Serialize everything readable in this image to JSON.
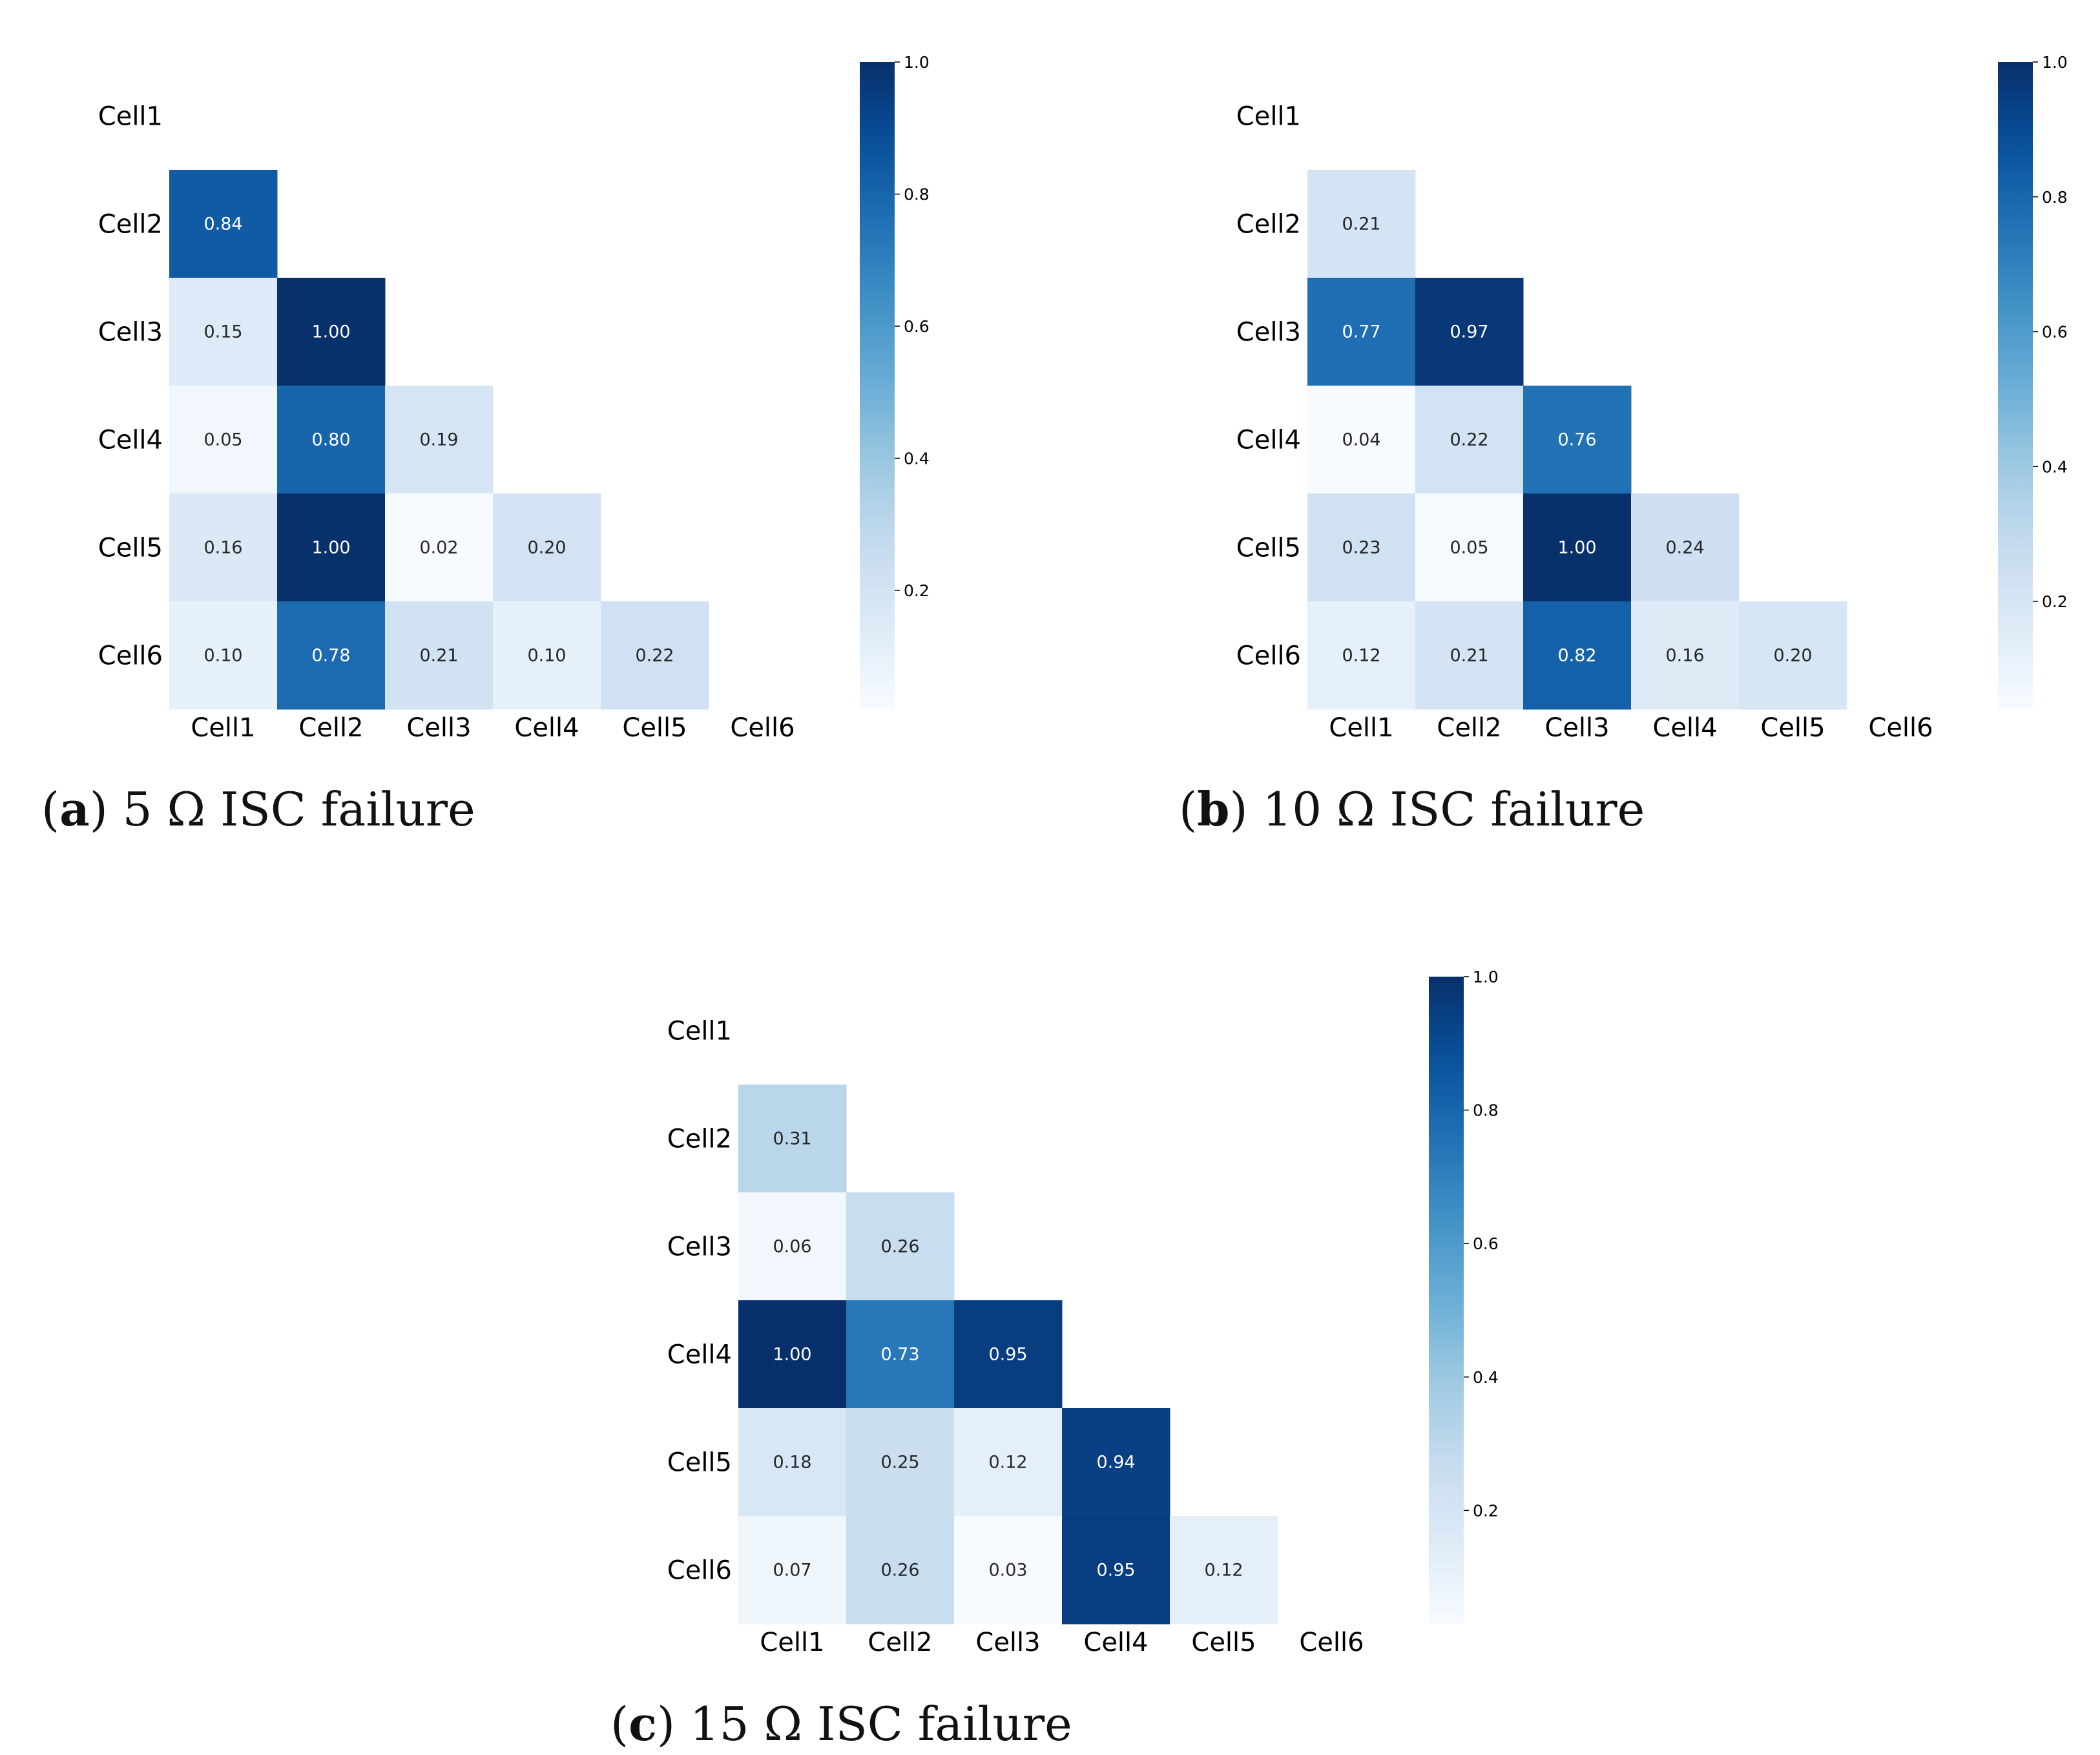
{
  "chart_data": [
    {
      "type": "heatmap",
      "panel_letter": "a",
      "caption": "5 Ω ISC failure",
      "row_labels": [
        "Cell1",
        "Cell2",
        "Cell3",
        "Cell4",
        "Cell5",
        "Cell6"
      ],
      "col_labels": [
        "Cell1",
        "Cell2",
        "Cell3",
        "Cell4",
        "Cell5",
        "Cell6"
      ],
      "mask": "upper-triangle-and-diagonal",
      "values": [
        [
          null,
          null,
          null,
          null,
          null,
          null
        ],
        [
          0.84,
          null,
          null,
          null,
          null,
          null
        ],
        [
          0.15,
          1.0,
          null,
          null,
          null,
          null
        ],
        [
          0.05,
          0.8,
          0.19,
          null,
          null,
          null
        ],
        [
          0.16,
          1.0,
          0.02,
          0.2,
          null,
          null
        ],
        [
          0.1,
          0.78,
          0.21,
          0.1,
          0.22,
          null
        ]
      ],
      "colormap": "Blues",
      "colorbar": {
        "range": [
          0.02,
          1.0
        ],
        "ticks": [
          "0.2",
          "0.4",
          "0.6",
          "0.8",
          "1.0"
        ]
      }
    },
    {
      "type": "heatmap",
      "panel_letter": "b",
      "caption": "10 Ω ISC failure",
      "row_labels": [
        "Cell1",
        "Cell2",
        "Cell3",
        "Cell4",
        "Cell5",
        "Cell6"
      ],
      "col_labels": [
        "Cell1",
        "Cell2",
        "Cell3",
        "Cell4",
        "Cell5",
        "Cell6"
      ],
      "mask": "upper-triangle-and-diagonal",
      "values": [
        [
          null,
          null,
          null,
          null,
          null,
          null
        ],
        [
          0.21,
          null,
          null,
          null,
          null,
          null
        ],
        [
          0.77,
          0.97,
          null,
          null,
          null,
          null
        ],
        [
          0.04,
          0.22,
          0.76,
          null,
          null,
          null
        ],
        [
          0.23,
          0.05,
          1.0,
          0.24,
          null,
          null
        ],
        [
          0.12,
          0.21,
          0.82,
          0.16,
          0.2,
          null
        ]
      ],
      "colormap": "Blues",
      "colorbar": {
        "range": [
          0.04,
          1.0
        ],
        "ticks": [
          "0.2",
          "0.4",
          "0.6",
          "0.8",
          "1.0"
        ]
      }
    },
    {
      "type": "heatmap",
      "panel_letter": "c",
      "caption": "15 Ω ISC failure",
      "row_labels": [
        "Cell1",
        "Cell2",
        "Cell3",
        "Cell4",
        "Cell5",
        "Cell6"
      ],
      "col_labels": [
        "Cell1",
        "Cell2",
        "Cell3",
        "Cell4",
        "Cell5",
        "Cell6"
      ],
      "mask": "upper-triangle-and-diagonal",
      "values": [
        [
          null,
          null,
          null,
          null,
          null,
          null
        ],
        [
          0.31,
          null,
          null,
          null,
          null,
          null
        ],
        [
          0.06,
          0.26,
          null,
          null,
          null,
          null
        ],
        [
          1.0,
          0.73,
          0.95,
          null,
          null,
          null
        ],
        [
          0.18,
          0.25,
          0.12,
          0.94,
          null,
          null
        ],
        [
          0.07,
          0.26,
          0.03,
          0.95,
          0.12,
          null
        ]
      ],
      "colormap": "Blues",
      "colorbar": {
        "range": [
          0.03,
          1.0
        ],
        "ticks": [
          "0.2",
          "0.4",
          "0.6",
          "0.8",
          "1.0"
        ]
      }
    }
  ]
}
